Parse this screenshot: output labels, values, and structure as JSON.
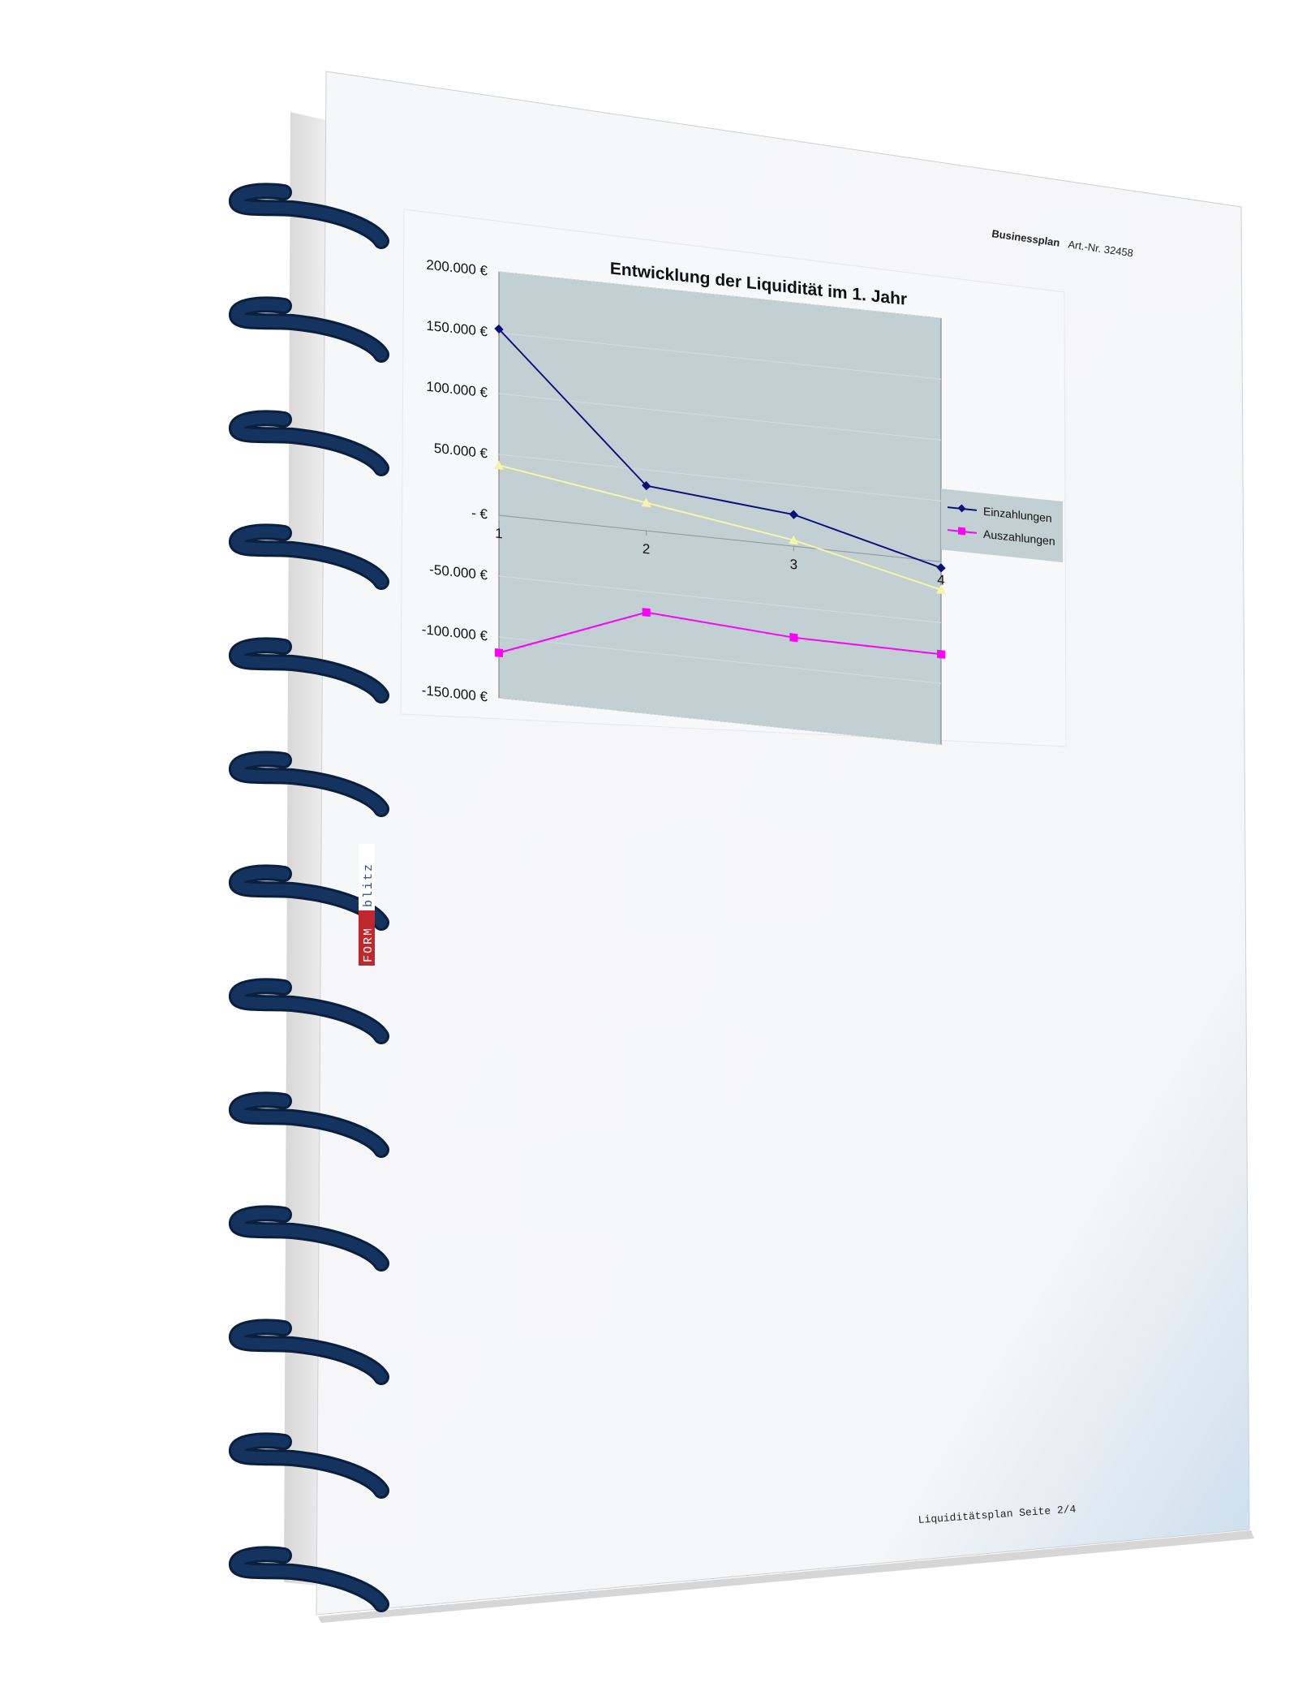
{
  "header": {
    "title": "Businessplan",
    "article_number": "Art.-Nr. 32458"
  },
  "footer": {
    "page_label": "Liquiditätsplan Seite 2/4"
  },
  "logo": {
    "text_form": "FORM",
    "text_blitz": "blitz"
  },
  "colors": {
    "spiral": "#14335e",
    "plot_bg": "#c3d0d3",
    "einzahlungen": "#0b0f7a",
    "auszahlungen": "#ff00ff",
    "third_series": "#f6f5a8"
  },
  "chart_data": {
    "type": "line",
    "title": "Entwicklung der Liquidität im 1. Jahr",
    "categories": [
      "1",
      "2",
      "3",
      "4"
    ],
    "y_ticks": [
      {
        "value": 200000,
        "label": "200.000 €"
      },
      {
        "value": 150000,
        "label": "150.000 €"
      },
      {
        "value": 100000,
        "label": "100.000 €"
      },
      {
        "value": 50000,
        "label": "50.000 €"
      },
      {
        "value": 0,
        "label": "- €"
      },
      {
        "value": -50000,
        "label": "-50.000 €"
      },
      {
        "value": -100000,
        "label": "-100.000 €"
      },
      {
        "value": -150000,
        "label": "-150.000 €"
      }
    ],
    "ylim": [
      -150000,
      200000
    ],
    "grid": true,
    "legend_position": "right",
    "series": [
      {
        "name": "Einzahlungen",
        "marker": "diamond",
        "color": "#0b0f7a",
        "values": [
          153000,
          37000,
          26000,
          -5000
        ]
      },
      {
        "name": "Auszahlungen",
        "marker": "square",
        "color": "#ff00ff",
        "values": [
          -113000,
          -67000,
          -75000,
          -76000
        ]
      },
      {
        "marker": "triangle",
        "color": "#f6f5a8",
        "values": [
          41000,
          23000,
          5000,
          -23000
        ]
      }
    ]
  }
}
